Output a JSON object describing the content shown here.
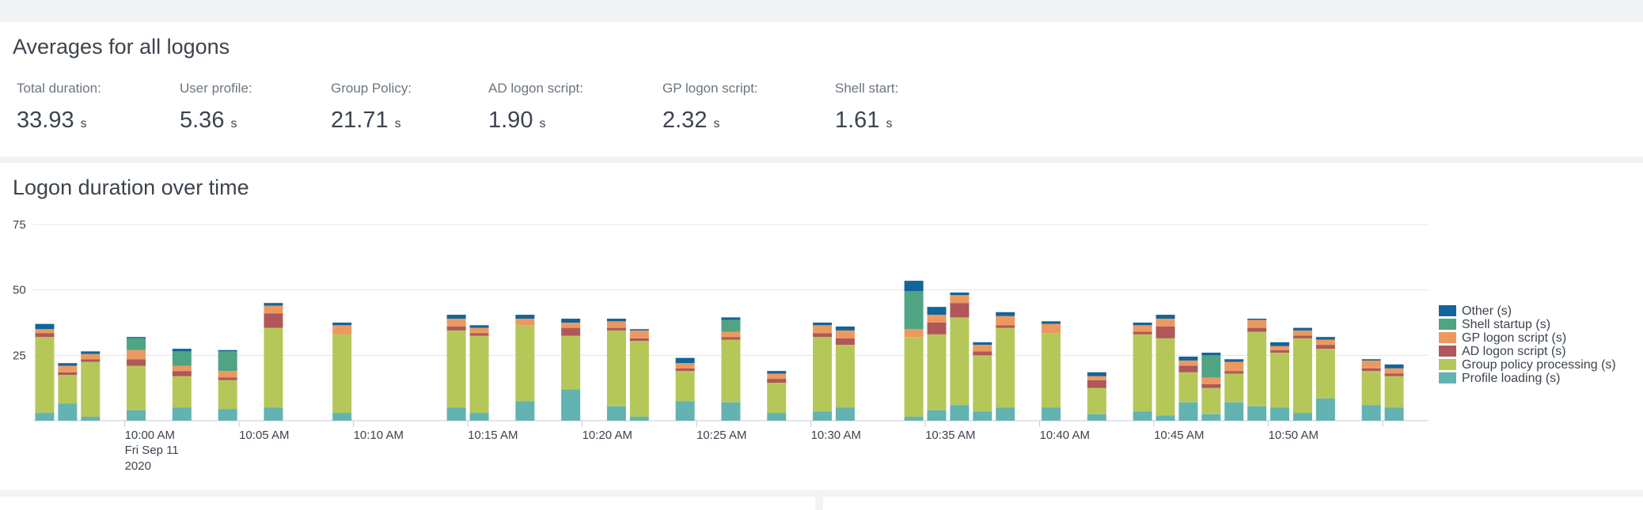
{
  "averages": {
    "title": "Averages for all logons",
    "stats": [
      {
        "label": "Total duration:",
        "value": "33.93",
        "unit": "s"
      },
      {
        "label": "User profile:",
        "value": "5.36",
        "unit": "s"
      },
      {
        "label": "Group Policy:",
        "value": "21.71",
        "unit": "s"
      },
      {
        "label": "AD logon script:",
        "value": "1.90",
        "unit": "s"
      },
      {
        "label": "GP logon script:",
        "value": "2.32",
        "unit": "s"
      },
      {
        "label": "Shell start:",
        "value": "1.61",
        "unit": "s"
      }
    ]
  },
  "chart_panel": {
    "title": "Logon duration over time"
  },
  "colors": {
    "other": "#11659a",
    "shell": "#4fa484",
    "gp_script": "#ec9960",
    "ad_script": "#af575a",
    "gp_processing": "#b6c75a",
    "profile": "#62b3b2",
    "grid": "#e1e5e8",
    "axis": "#c3cbd4"
  },
  "chart_data": {
    "type": "bar",
    "stacked": true,
    "title": "Logon duration over time",
    "ylim": [
      0,
      75
    ],
    "yticks": [
      25,
      50,
      75
    ],
    "grid": true,
    "legend_position": "right",
    "x_unit": "minutes since 9:56 AM",
    "xticks": [
      {
        "x": 4,
        "label": "10:00 AM",
        "sublabel1": "Fri Sep 11",
        "sublabel2": "2020"
      },
      {
        "x": 9,
        "label": "10:05 AM"
      },
      {
        "x": 14,
        "label": "10:10 AM"
      },
      {
        "x": 19,
        "label": "10:15 AM"
      },
      {
        "x": 24,
        "label": "10:20 AM"
      },
      {
        "x": 29,
        "label": "10:25 AM"
      },
      {
        "x": 34,
        "label": "10:30 AM"
      },
      {
        "x": 39,
        "label": "10:35 AM"
      },
      {
        "x": 44,
        "label": "10:40 AM"
      },
      {
        "x": 49,
        "label": "10:45 AM"
      },
      {
        "x": 54,
        "label": "10:50 AM"
      },
      {
        "x": 59,
        "label": ""
      }
    ],
    "series_order": [
      "profile",
      "gp_processing",
      "ad_script",
      "gp_script",
      "shell",
      "other"
    ],
    "legend": [
      {
        "key": "other",
        "name": "Other (s)"
      },
      {
        "key": "shell",
        "name": "Shell startup (s)"
      },
      {
        "key": "gp_script",
        "name": "GP logon script (s)"
      },
      {
        "key": "ad_script",
        "name": "AD logon script (s)"
      },
      {
        "key": "gp_processing",
        "name": "Group policy processing (s)"
      },
      {
        "key": "profile",
        "name": "Profile loading (s)"
      }
    ],
    "bars": [
      {
        "t": 0.5,
        "profile": 3,
        "gp_processing": 29,
        "ad_script": 1.5,
        "gp_script": 1.5,
        "shell": 0,
        "other": 2
      },
      {
        "t": 1.5,
        "profile": 6.5,
        "gp_processing": 11,
        "ad_script": 1,
        "gp_script": 2.5,
        "shell": 0,
        "other": 1
      },
      {
        "t": 2.5,
        "profile": 1.5,
        "gp_processing": 21,
        "ad_script": 1,
        "gp_script": 2,
        "shell": 0,
        "other": 1
      },
      {
        "t": 4.5,
        "profile": 4,
        "gp_processing": 17,
        "ad_script": 2.5,
        "gp_script": 3.5,
        "shell": 4.5,
        "other": 0.5
      },
      {
        "t": 6.5,
        "profile": 5,
        "gp_processing": 12,
        "ad_script": 2,
        "gp_script": 2,
        "shell": 5.5,
        "other": 1
      },
      {
        "t": 8.5,
        "profile": 4.5,
        "gp_processing": 11,
        "ad_script": 1,
        "gp_script": 2.5,
        "shell": 7.5,
        "other": 0.5
      },
      {
        "t": 10.5,
        "profile": 5,
        "gp_processing": 30.5,
        "ad_script": 5.5,
        "gp_script": 3,
        "shell": 0,
        "other": 1
      },
      {
        "t": 13.5,
        "profile": 3,
        "gp_processing": 30,
        "ad_script": 0,
        "gp_script": 3.5,
        "shell": 0,
        "other": 1
      },
      {
        "t": 18.5,
        "profile": 5,
        "gp_processing": 29.5,
        "ad_script": 1.5,
        "gp_script": 3,
        "shell": 0,
        "other": 1.5
      },
      {
        "t": 19.5,
        "profile": 3,
        "gp_processing": 29.5,
        "ad_script": 1,
        "gp_script": 2,
        "shell": 0,
        "other": 1
      },
      {
        "t": 21.5,
        "profile": 7.5,
        "gp_processing": 29,
        "ad_script": 0,
        "gp_script": 2.5,
        "shell": 0,
        "other": 1.5
      },
      {
        "t": 23.5,
        "profile": 12,
        "gp_processing": 20.5,
        "ad_script": 3,
        "gp_script": 2,
        "shell": 0,
        "other": 1.5
      },
      {
        "t": 25.5,
        "profile": 5.5,
        "gp_processing": 29,
        "ad_script": 1,
        "gp_script": 2.5,
        "shell": 0,
        "other": 1
      },
      {
        "t": 26.5,
        "profile": 1.5,
        "gp_processing": 29,
        "ad_script": 1,
        "gp_script": 3,
        "shell": 0,
        "other": 0.5
      },
      {
        "t": 28.5,
        "profile": 7.5,
        "gp_processing": 11.5,
        "ad_script": 1,
        "gp_script": 2,
        "shell": 0,
        "other": 2
      },
      {
        "t": 30.5,
        "profile": 7,
        "gp_processing": 24,
        "ad_script": 1,
        "gp_script": 2,
        "shell": 4.5,
        "other": 1
      },
      {
        "t": 32.5,
        "profile": 3,
        "gp_processing": 11.5,
        "ad_script": 1.5,
        "gp_script": 2,
        "shell": 0,
        "other": 1
      },
      {
        "t": 34.5,
        "profile": 3.5,
        "gp_processing": 28.5,
        "ad_script": 1.5,
        "gp_script": 3,
        "shell": 0,
        "other": 1
      },
      {
        "t": 35.5,
        "profile": 5,
        "gp_processing": 24,
        "ad_script": 2.5,
        "gp_script": 3,
        "shell": 0,
        "other": 1.5
      },
      {
        "t": 38.5,
        "profile": 1.5,
        "gp_processing": 30.5,
        "ad_script": 0,
        "gp_script": 3,
        "shell": 14.5,
        "other": 4
      },
      {
        "t": 39.5,
        "profile": 4,
        "gp_processing": 29,
        "ad_script": 4.5,
        "gp_script": 3,
        "shell": 0,
        "other": 3
      },
      {
        "t": 40.5,
        "profile": 6,
        "gp_processing": 33.5,
        "ad_script": 5.5,
        "gp_script": 3,
        "shell": 0,
        "other": 1
      },
      {
        "t": 41.5,
        "profile": 3.5,
        "gp_processing": 21.5,
        "ad_script": 1.5,
        "gp_script": 2.5,
        "shell": 0,
        "other": 1
      },
      {
        "t": 42.5,
        "profile": 5,
        "gp_processing": 30.5,
        "ad_script": 1,
        "gp_script": 3.5,
        "shell": 0,
        "other": 1.5
      },
      {
        "t": 44.5,
        "profile": 5,
        "gp_processing": 28.5,
        "ad_script": 0,
        "gp_script": 3.5,
        "shell": 0,
        "other": 1
      },
      {
        "t": 46.5,
        "profile": 2.5,
        "gp_processing": 10,
        "ad_script": 3,
        "gp_script": 1.5,
        "shell": 0,
        "other": 1.5
      },
      {
        "t": 48.5,
        "profile": 3.5,
        "gp_processing": 29.5,
        "ad_script": 1,
        "gp_script": 2.5,
        "shell": 0,
        "other": 1
      },
      {
        "t": 49.5,
        "profile": 2,
        "gp_processing": 29.5,
        "ad_script": 4.5,
        "gp_script": 3,
        "shell": 0,
        "other": 1.5
      },
      {
        "t": 50.5,
        "profile": 7,
        "gp_processing": 11.5,
        "ad_script": 2.5,
        "gp_script": 2,
        "shell": 0,
        "other": 1.5
      },
      {
        "t": 51.5,
        "profile": 2.5,
        "gp_processing": 10,
        "ad_script": 1.5,
        "gp_script": 2.5,
        "shell": 8.5,
        "other": 1
      },
      {
        "t": 52.5,
        "profile": 7,
        "gp_processing": 11,
        "ad_script": 1,
        "gp_script": 3.5,
        "shell": 0,
        "other": 1
      },
      {
        "t": 53.5,
        "profile": 5.5,
        "gp_processing": 28.5,
        "ad_script": 1.5,
        "gp_script": 3,
        "shell": 0,
        "other": 0.5
      },
      {
        "t": 54.5,
        "profile": 5,
        "gp_processing": 21,
        "ad_script": 1,
        "gp_script": 1.5,
        "shell": 0,
        "other": 1.5
      },
      {
        "t": 55.5,
        "profile": 3,
        "gp_processing": 28.5,
        "ad_script": 1,
        "gp_script": 2,
        "shell": 0,
        "other": 1
      },
      {
        "t": 56.5,
        "profile": 8.5,
        "gp_processing": 19,
        "ad_script": 1.5,
        "gp_script": 2,
        "shell": 0,
        "other": 1
      },
      {
        "t": 58.5,
        "profile": 6,
        "gp_processing": 13,
        "ad_script": 1,
        "gp_script": 3,
        "shell": 0,
        "other": 0.5
      },
      {
        "t": 59.5,
        "profile": 5,
        "gp_processing": 12,
        "ad_script": 1,
        "gp_script": 2,
        "shell": 0,
        "other": 1.5
      }
    ]
  }
}
